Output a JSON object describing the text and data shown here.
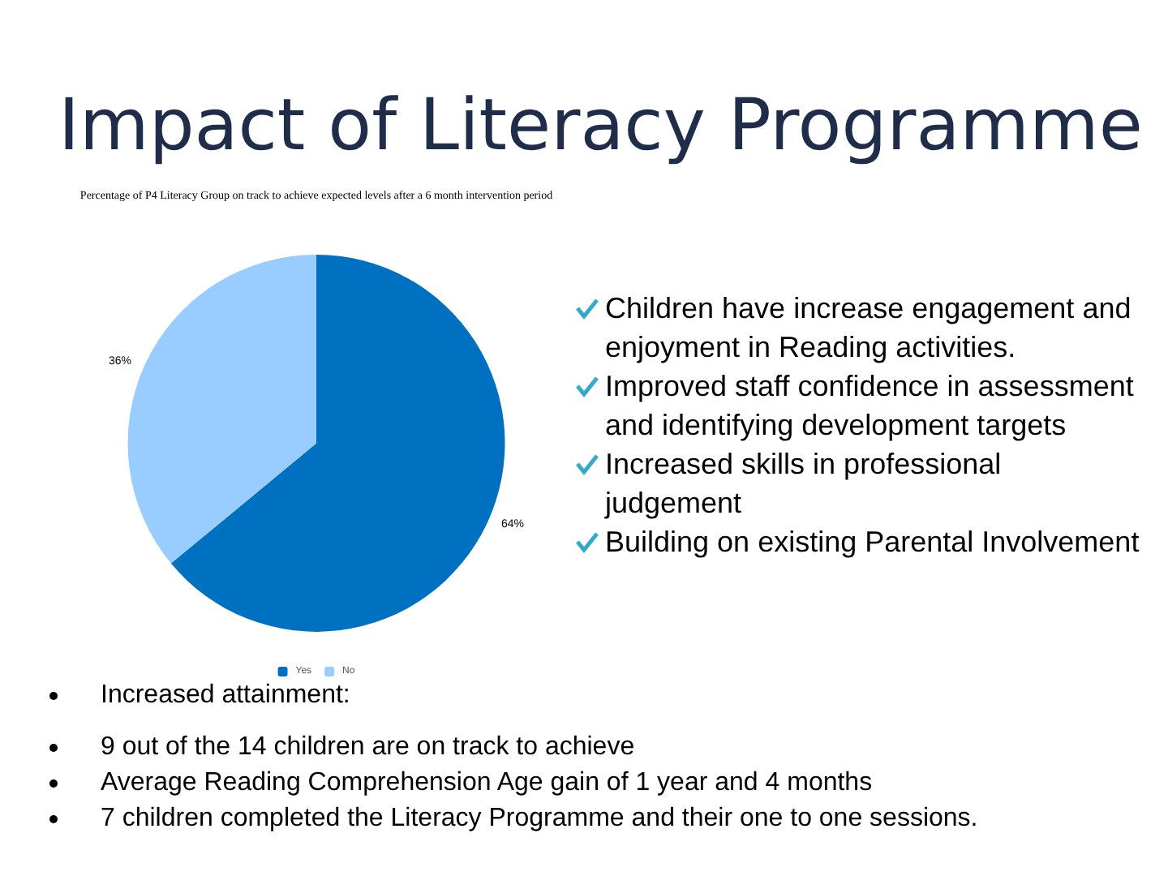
{
  "chart_data": {
    "type": "pie",
    "title": "Impact of Literacy Programme",
    "subtitle": "Percentage of P4 Literacy Group on track to achieve expected levels after a 6 month intervention period",
    "categories": [
      "Yes",
      "No"
    ],
    "values": [
      64,
      36
    ],
    "value_labels": [
      "64%",
      "36%"
    ],
    "colors": [
      "#0070c0",
      "#99ccff"
    ],
    "legend": "bottom",
    "annotations": [
      "Children have increase engagement and enjoyment in Reading activities.",
      "Improved staff confidence in assessment and identifying development targets",
      "Increased skills in professional judgement",
      "Building on existing Parental Involvement",
      "Increased attainment:",
      "9 out of the 14 children are on track to achieve",
      "Average Reading Comprehension Age gain of 1 year and 4 months",
      "7 children completed the Literacy Programme and their one to one sessions."
    ]
  }
}
